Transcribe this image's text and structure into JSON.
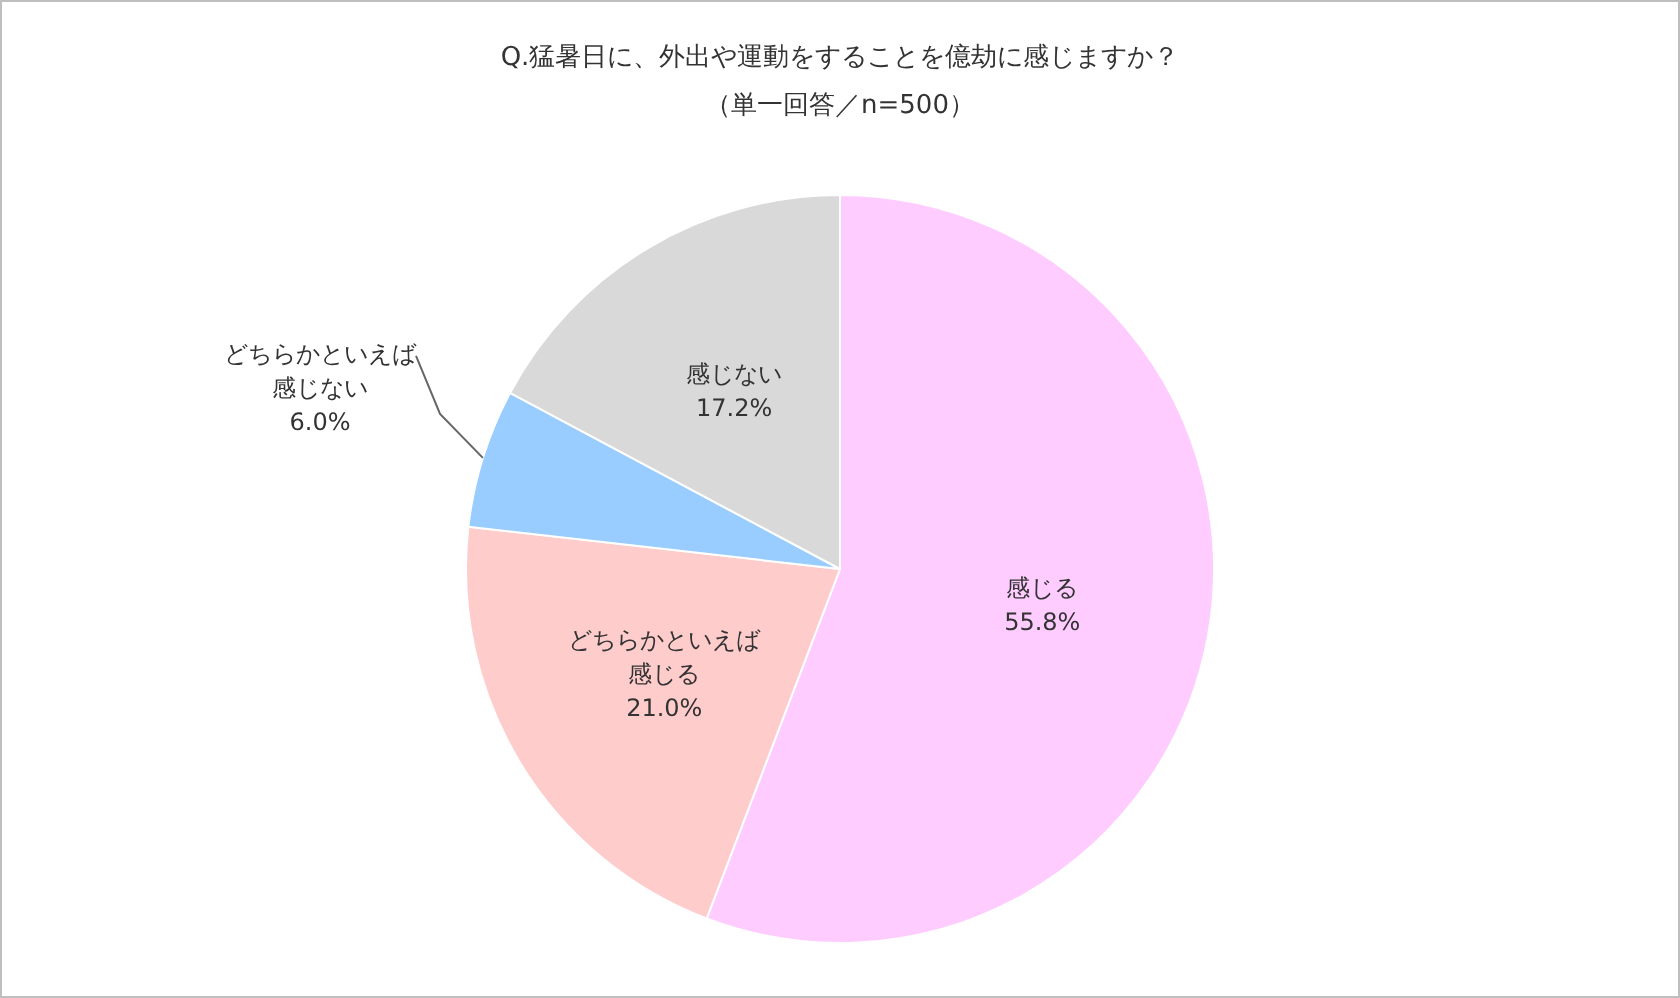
{
  "chart_data": {
    "type": "pie",
    "title": "Q.猛暑日に、外出や運動をすることを億劫に感じますか？",
    "subtitle": "（単一回答／n=500）",
    "categories": [
      "感じる",
      "どちらかといえば感じる",
      "どちらかといえば感じない",
      "感じない"
    ],
    "values": [
      55.8,
      21.0,
      6.0,
      17.2
    ],
    "colors": [
      "#ffccff",
      "#ffcccc",
      "#99ccff",
      "#d9d9d9"
    ],
    "value_labels": [
      "55.8%",
      "21.0%",
      "6.0%",
      "17.2%"
    ]
  }
}
